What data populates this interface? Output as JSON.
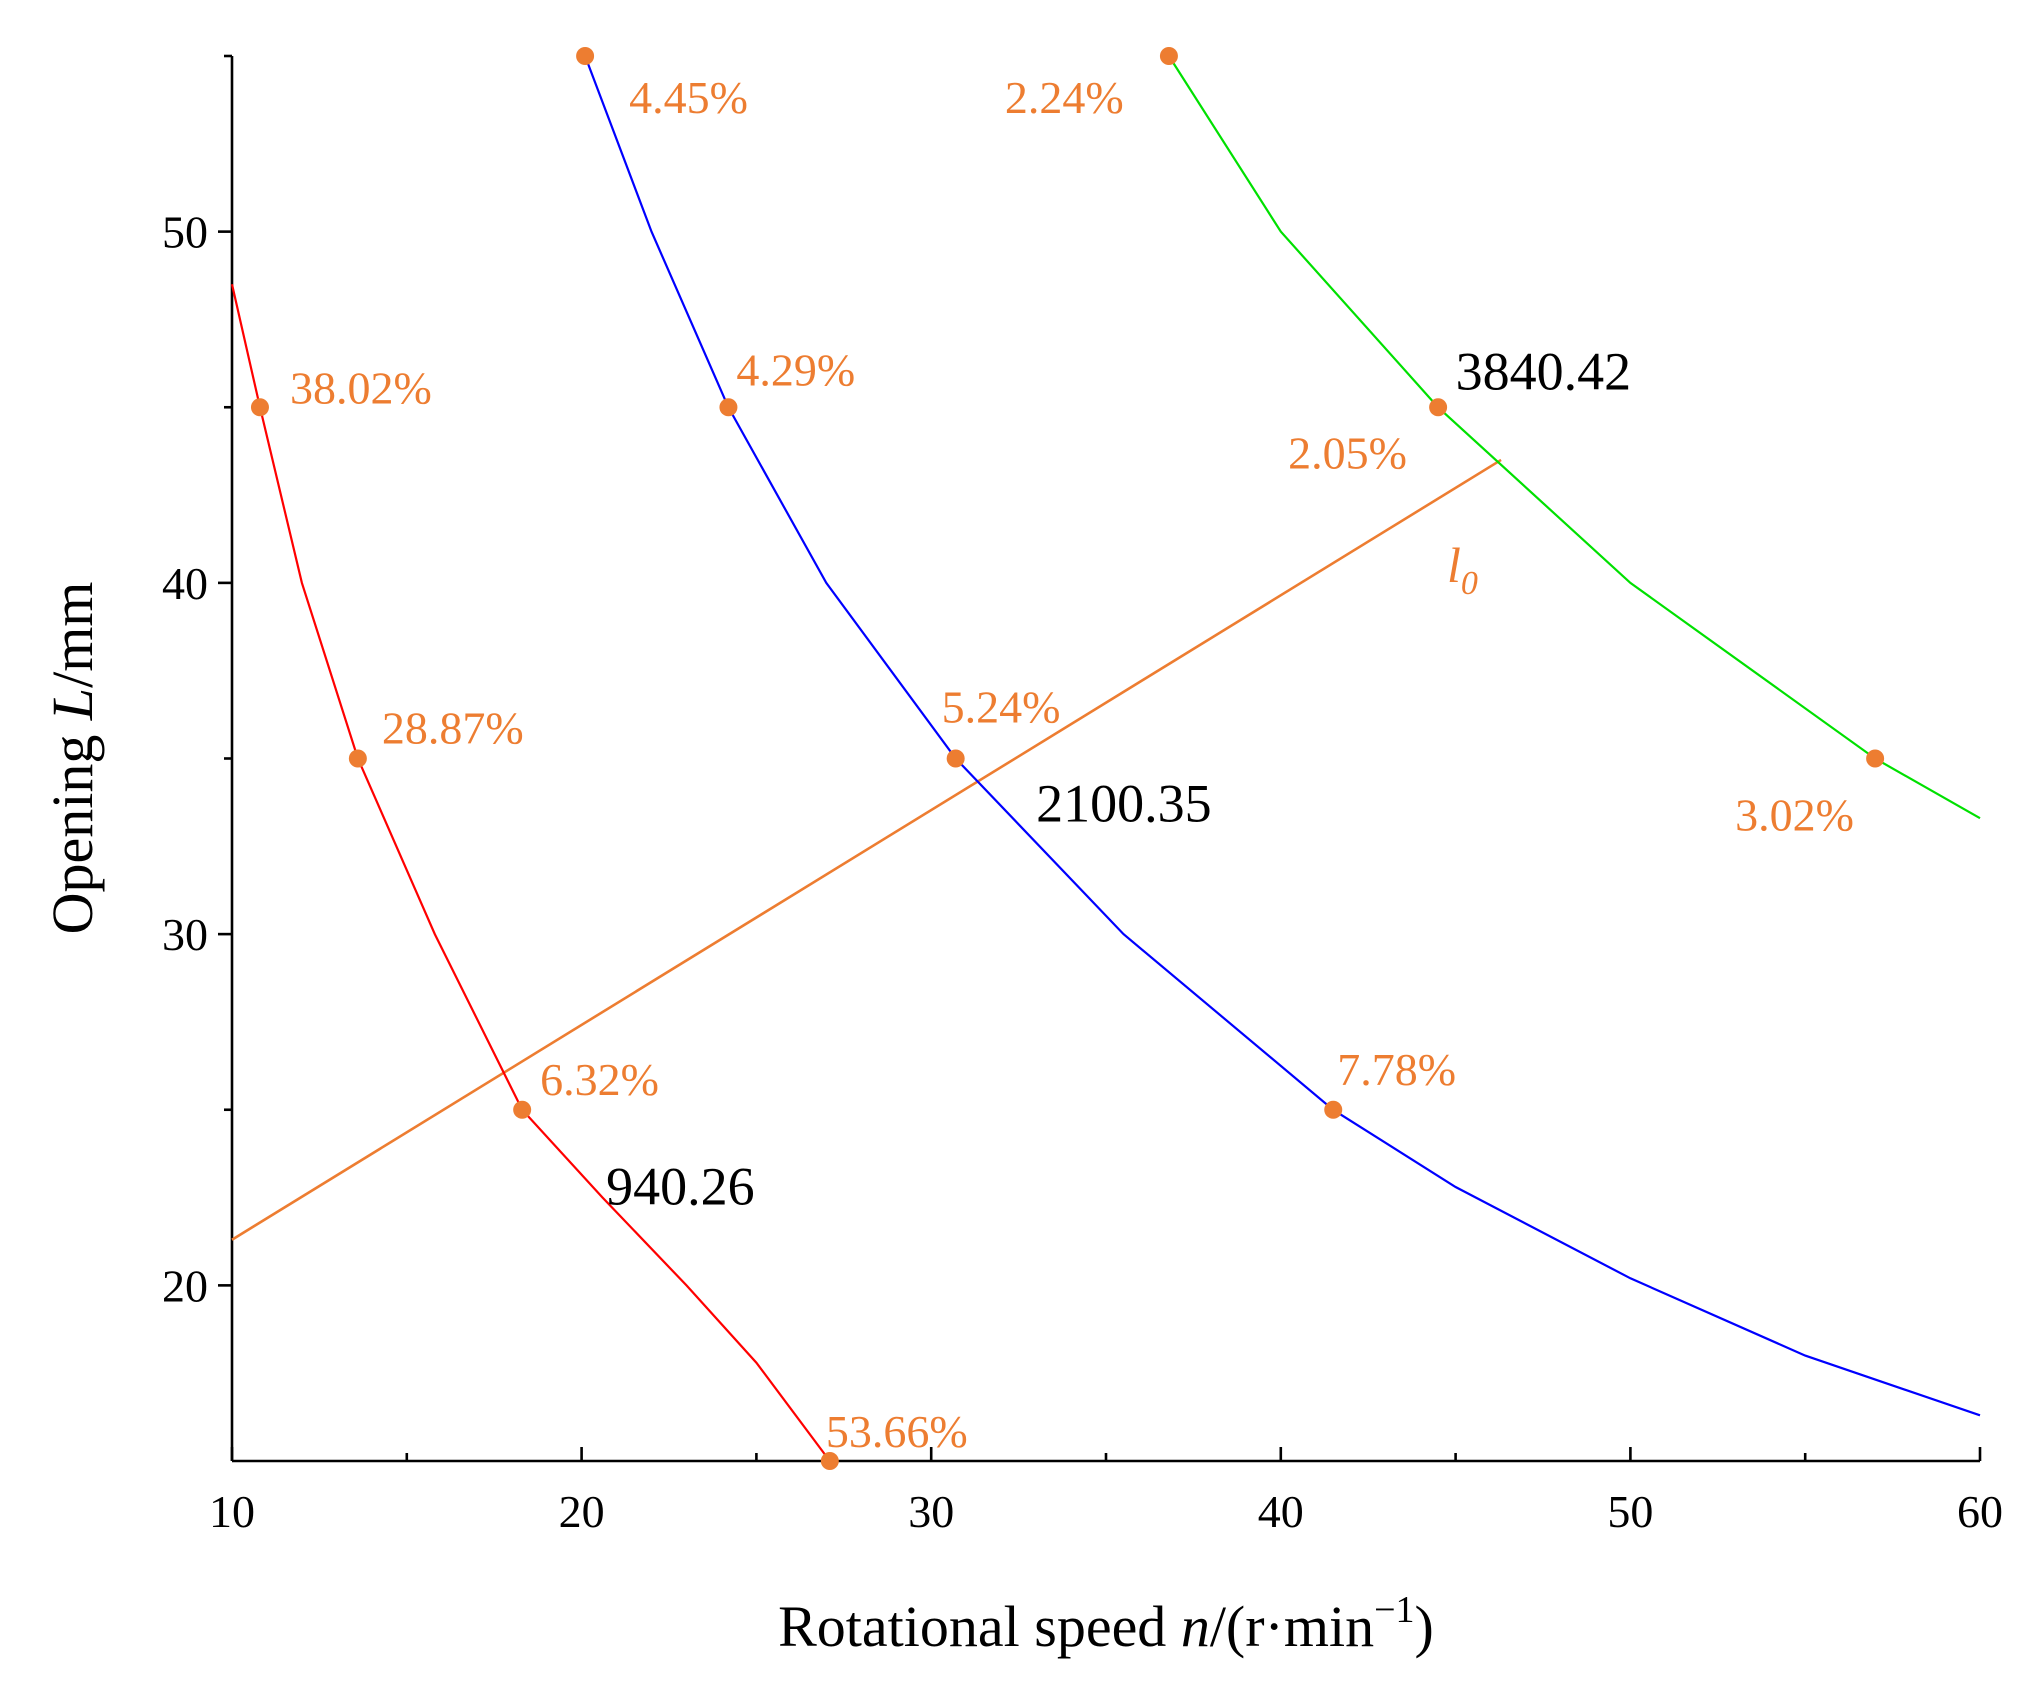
{
  "chart_data": {
    "type": "line",
    "title": "",
    "xlabel": {
      "pre": "Rotational speed ",
      "var": "n",
      "post": "/(r·min",
      "sup": "−1",
      "close": ")"
    },
    "ylabel": {
      "pre": "Opening ",
      "var": "L",
      "post": "/mm"
    },
    "xlim": [
      10,
      60
    ],
    "ylim": [
      15,
      55
    ],
    "xticks": [
      10,
      20,
      30,
      40,
      50,
      60
    ],
    "xticks_minor": [
      15,
      25,
      35,
      45,
      55
    ],
    "yticks": [
      20,
      30,
      40,
      50
    ],
    "yticks_minor": [
      25,
      35,
      45,
      55
    ],
    "grid": false,
    "highlight_color": "#ED7D31",
    "series": [
      {
        "name": "940.26",
        "color": "#FF0000",
        "x": [
          10.0,
          10.8,
          12.0,
          13.6,
          15.8,
          18.3,
          20.6,
          23.0,
          25.0,
          27.1
        ],
        "y": [
          48.5,
          45.0,
          40.0,
          35.0,
          30.0,
          25.0,
          22.5,
          20.0,
          17.8,
          15.0
        ],
        "markers": [
          {
            "x": 10.8,
            "y": 45.0,
            "label": "38.02%"
          },
          {
            "x": 13.6,
            "y": 35.0,
            "label": "28.87%"
          },
          {
            "x": 18.3,
            "y": 25.0,
            "label": "6.32%"
          },
          {
            "x": 27.1,
            "y": 15.0,
            "label": "53.66%"
          }
        ],
        "iso_label": {
          "text": "940.26",
          "x": 20.7,
          "y": 22.3
        }
      },
      {
        "name": "2100.35",
        "color": "#0000FF",
        "x": [
          20.1,
          22.0,
          24.2,
          27.0,
          30.7,
          35.5,
          41.5,
          45.0,
          50.0,
          55.0,
          60.0
        ],
        "y": [
          55.0,
          50.0,
          45.0,
          40.0,
          35.0,
          30.0,
          25.0,
          22.8,
          20.2,
          18.0,
          16.3
        ],
        "markers": [
          {
            "x": 20.1,
            "y": 55.0,
            "label": "4.45%"
          },
          {
            "x": 24.2,
            "y": 45.0,
            "label": "4.29%"
          },
          {
            "x": 30.7,
            "y": 35.0,
            "label": "5.24%"
          },
          {
            "x": 41.5,
            "y": 25.0,
            "label": "7.78%"
          }
        ],
        "iso_label": {
          "text": "2100.35",
          "x": 33.0,
          "y": 33.2
        }
      },
      {
        "name": "3840.42",
        "color": "#00E000",
        "x": [
          36.8,
          40.0,
          44.5,
          50.0,
          57.0,
          60.0
        ],
        "y": [
          55.0,
          50.0,
          45.0,
          40.0,
          35.0,
          33.3
        ],
        "markers": [
          {
            "x": 36.8,
            "y": 55.0,
            "label": "2.24%"
          },
          {
            "x": 44.5,
            "y": 45.0,
            "label": "2.05%"
          },
          {
            "x": 57.0,
            "y": 35.0,
            "label": "3.02%"
          }
        ],
        "iso_label": {
          "text": "3840.42",
          "x": 45.0,
          "y": 45.5
        }
      }
    ],
    "line_l0": {
      "name": "l0",
      "label_main": "l",
      "label_sub": "0",
      "color": "#ED7D31",
      "x": [
        10.0,
        46.3
      ],
      "y": [
        21.3,
        43.5
      ]
    }
  }
}
